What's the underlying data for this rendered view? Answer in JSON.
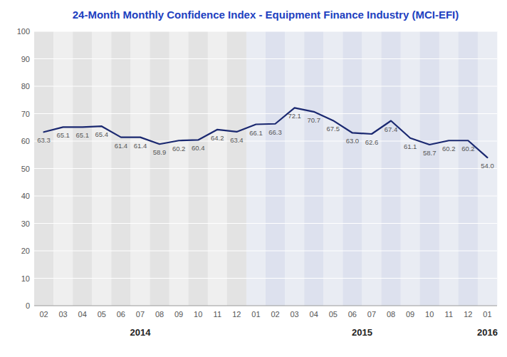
{
  "chart_data": {
    "type": "line",
    "title": "24-Month Monthly Confidence Index - Equipment Finance Industry (MCI-EFI)",
    "categories": [
      "02",
      "03",
      "04",
      "05",
      "06",
      "07",
      "08",
      "09",
      "10",
      "11",
      "12",
      "01",
      "02",
      "03",
      "04",
      "05",
      "06",
      "07",
      "08",
      "09",
      "10",
      "11",
      "12",
      "01"
    ],
    "values": [
      63.3,
      65.1,
      65.1,
      65.4,
      61.4,
      61.4,
      58.9,
      60.2,
      60.4,
      64.2,
      63.4,
      66.1,
      66.3,
      72.1,
      70.7,
      67.5,
      63.0,
      62.6,
      67.4,
      61.1,
      58.7,
      60.2,
      60.2,
      54.0
    ],
    "value_labels": [
      "63.3",
      "65.1",
      "65.1",
      "65.4",
      "61.4",
      "61.4",
      "58.9",
      "60.2",
      "60.4",
      "64.2",
      "63.4",
      "66.1",
      "66.3",
      "72.1",
      "70.7",
      "67.5",
      "63.0",
      "62.6",
      "67.4",
      "61.1",
      "58.7",
      "60.2",
      "60.2",
      "54.0"
    ],
    "color": "#1a2870",
    "ylim": [
      0,
      100
    ],
    "yticks": [
      0,
      10,
      20,
      30,
      40,
      50,
      60,
      70,
      80,
      90,
      100
    ],
    "grid": true,
    "data_labels": true,
    "annotations": [
      {
        "text": "2014",
        "start": 0,
        "end": 10
      },
      {
        "text": "2015",
        "start": 11,
        "end": 22
      },
      {
        "text": "2016",
        "start": 23,
        "end": 23
      }
    ]
  }
}
